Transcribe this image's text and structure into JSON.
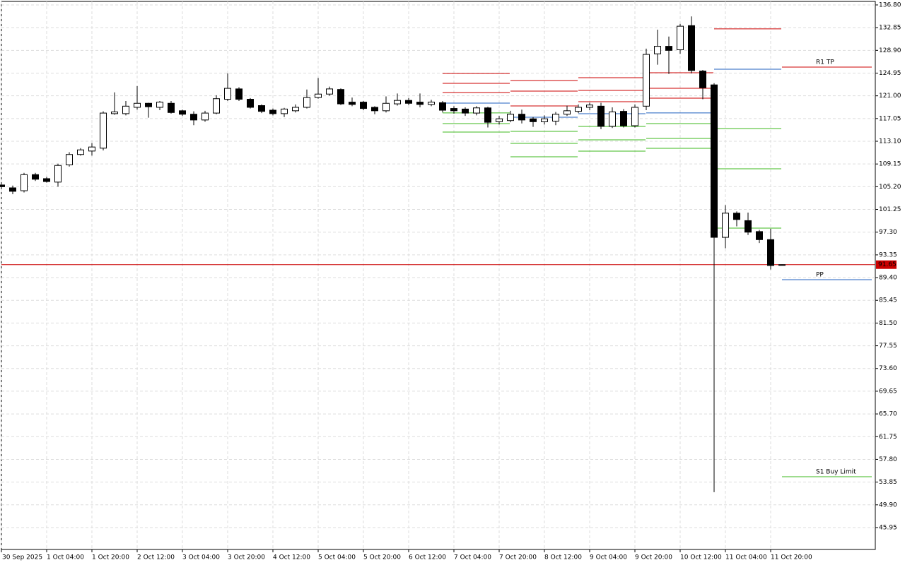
{
  "chart_data": {
    "type": "candlestick",
    "categories": [
      "30 Sep 2025",
      null,
      null,
      null,
      "1 Oct 04:00",
      null,
      null,
      null,
      "1 Oct 20:00",
      null,
      null,
      null,
      "2 Oct 12:00",
      null,
      null,
      null,
      "3 Oct 04:00",
      null,
      null,
      null,
      "3 Oct 20:00",
      null,
      null,
      null,
      "4 Oct 12:00",
      null,
      null,
      null,
      "5 Oct 04:00",
      null,
      null,
      null,
      "5 Oct 20:00",
      null,
      null,
      null,
      "6 Oct 12:00",
      null,
      null,
      null,
      "7 Oct 04:00",
      null,
      null,
      null,
      "7 Oct 20:00",
      null,
      null,
      null,
      "8 Oct 12:00",
      null,
      null,
      null,
      "9 Oct 04:00",
      null,
      null,
      null,
      "9 Oct 20:00",
      null,
      null,
      null,
      "10 Oct 12:00",
      null,
      null,
      null,
      "11 Oct 04:00",
      null,
      null,
      null,
      "11 Oct 20:00",
      null
    ],
    "open": [
      105.5,
      105.0,
      104.5,
      107.3,
      106.6,
      106.0,
      109.0,
      110.8,
      111.4,
      111.9,
      117.9,
      117.9,
      119.0,
      119.7,
      119.0,
      119.7,
      118.4,
      117.8,
      116.8,
      118.0,
      120.4,
      122.2,
      120.4,
      119.3,
      118.5,
      117.9,
      118.4,
      119.0,
      120.7,
      121.3,
      122.1,
      119.9,
      119.9,
      119.0,
      118.4,
      119.6,
      120.2,
      119.9,
      119.5,
      119.8,
      118.8,
      118.7,
      118.0,
      118.9,
      116.5,
      116.7,
      117.8,
      117.0,
      116.5,
      116.6,
      117.8,
      118.3,
      119.0,
      119.2,
      115.7,
      118.3,
      115.8,
      119.2,
      128.3,
      129.6,
      129.0,
      133.2,
      125.3,
      122.9,
      96.4,
      100.6,
      99.3,
      97.4,
      96.0,
      91.6
    ],
    "high": [
      105.6,
      105.4,
      107.6,
      107.6,
      106.9,
      109.2,
      111.2,
      111.9,
      112.8,
      118.3,
      121.6,
      120.1,
      122.7,
      119.8,
      120.1,
      120.1,
      118.6,
      118.3,
      118.4,
      121.1,
      124.9,
      122.5,
      120.6,
      119.5,
      118.8,
      118.9,
      119.5,
      122.1,
      124.1,
      122.6,
      122.3,
      120.7,
      120.1,
      119.2,
      120.9,
      121.4,
      120.6,
      121.4,
      120.3,
      120.1,
      119.2,
      119.0,
      119.2,
      119.1,
      117.5,
      118.4,
      118.6,
      117.3,
      117.6,
      118.2,
      119.3,
      119.5,
      119.8,
      119.8,
      119.0,
      118.7,
      119.5,
      129.2,
      132.5,
      131.3,
      133.5,
      134.8,
      125.5,
      123.2,
      102.0,
      100.9,
      100.7,
      97.7,
      97.9,
      91.7
    ],
    "low": [
      105.1,
      103.9,
      104.2,
      106.2,
      105.9,
      105.2,
      108.7,
      110.6,
      110.6,
      111.5,
      117.7,
      117.6,
      118.6,
      117.2,
      118.5,
      117.9,
      117.5,
      115.9,
      116.5,
      117.8,
      120.1,
      120.1,
      118.8,
      118.0,
      117.6,
      117.3,
      118.1,
      118.8,
      120.5,
      121.0,
      119.4,
      119.2,
      118.5,
      117.8,
      118.1,
      119.3,
      119.4,
      119.0,
      119.2,
      118.1,
      117.9,
      117.5,
      117.6,
      115.5,
      116.0,
      116.4,
      116.2,
      115.6,
      116.0,
      115.9,
      117.5,
      118.0,
      118.5,
      115.2,
      115.4,
      115.5,
      115.5,
      118.5,
      126.4,
      124.8,
      128.3,
      124.9,
      120.4,
      52.1,
      94.5,
      98.3,
      96.8,
      95.4,
      90.8,
      91.5
    ],
    "close": [
      105.2,
      104.4,
      107.3,
      106.5,
      106.1,
      108.9,
      110.8,
      111.6,
      112.1,
      118.0,
      118.2,
      119.2,
      119.7,
      119.1,
      119.9,
      118.1,
      117.8,
      116.8,
      118.0,
      120.5,
      122.3,
      120.4,
      119.0,
      118.3,
      117.9,
      118.7,
      119.0,
      120.7,
      121.3,
      122.2,
      119.6,
      119.5,
      118.8,
      118.4,
      119.7,
      120.2,
      119.7,
      119.5,
      119.9,
      118.5,
      118.4,
      118.0,
      118.9,
      116.4,
      117.0,
      117.8,
      116.8,
      116.5,
      117.0,
      117.8,
      118.4,
      119.0,
      119.4,
      115.7,
      118.2,
      115.8,
      119.0,
      128.2,
      129.6,
      128.9,
      133.1,
      125.4,
      122.4,
      96.4,
      100.6,
      99.5,
      97.3,
      96.0,
      91.5,
      91.65
    ],
    "up_color": "#ffffff",
    "down_color": "#000000",
    "ylim": [
      42.14,
      137.41
    ],
    "yticks": [
      {
        "value": 136.8,
        "label": "136.80"
      },
      {
        "value": 132.85,
        "label": "132.85"
      },
      {
        "value": 128.9,
        "label": "128.90"
      },
      {
        "value": 124.95,
        "label": "124.95"
      },
      {
        "value": 121.0,
        "label": "121.00"
      },
      {
        "value": 117.05,
        "label": "117.05"
      },
      {
        "value": 113.1,
        "label": "113.10"
      },
      {
        "value": 109.15,
        "label": "109.15"
      },
      {
        "value": 105.2,
        "label": "105.20"
      },
      {
        "value": 101.25,
        "label": "101.25"
      },
      {
        "value": 97.3,
        "label": "97.30"
      },
      {
        "value": 93.35,
        "label": "93.35"
      },
      {
        "value": 89.4,
        "label": "89.40"
      },
      {
        "value": 85.45,
        "label": "85.45"
      },
      {
        "value": 81.5,
        "label": "81.50"
      },
      {
        "value": 77.55,
        "label": "77.55"
      },
      {
        "value": 73.6,
        "label": "73.60"
      },
      {
        "value": 69.65,
        "label": "69.65"
      },
      {
        "value": 65.7,
        "label": "65.70"
      },
      {
        "value": 61.75,
        "label": "61.75"
      },
      {
        "value": 57.8,
        "label": "57.80"
      },
      {
        "value": 53.85,
        "label": "53.85"
      },
      {
        "value": 49.9,
        "label": "49.90"
      },
      {
        "value": 45.95,
        "label": "45.95"
      }
    ],
    "grid": true,
    "last_price": {
      "value": 91.65,
      "label": "91.65",
      "color": "#cc0000"
    },
    "resistance_color": "#cc0000",
    "pivot_color": "#1f5fbf",
    "support_color": "#3cb81c",
    "levels": [
      {
        "resistance": [
          124.89,
          123.17,
          121.58
        ],
        "pivot": 119.73,
        "support": [
          118.02,
          116.17,
          114.7
        ]
      },
      {
        "resistance": [
          123.66,
          121.82,
          119.24
        ],
        "pivot": 117.28,
        "support": [
          114.82,
          112.74,
          110.4
        ]
      },
      {
        "resistance": [
          124.15,
          121.94,
          119.98
        ],
        "pivot": 117.89,
        "support": [
          115.68,
          113.35,
          111.39
        ]
      },
      {
        "resistance": [
          125.01,
          122.31,
          120.59
        ],
        "pivot": 118.02,
        "support": [
          116.17,
          113.6,
          111.88
        ]
      },
      {
        "resistance": [
          132.63
        ],
        "pivot": 125.63,
        "support": [
          115.31,
          108.32,
          98.0
        ]
      },
      {
        "resistance": [
          126.0
        ],
        "pivot": 89.04,
        "support": [
          54.79
        ],
        "resistance_label": "R1 TP",
        "pivot_label": "PP",
        "support_label": "S1 Buy Limit"
      }
    ]
  }
}
